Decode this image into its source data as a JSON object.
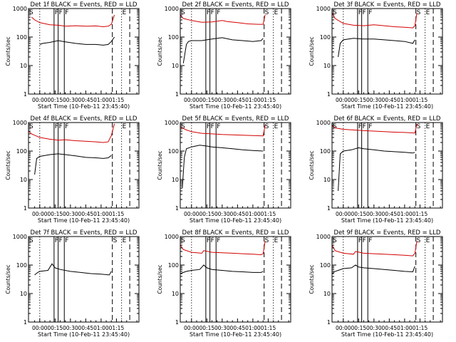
{
  "figure": {
    "ylabel": "Counts/sec",
    "xlabel": "Start Time (10-Feb-11 23:45:40)",
    "colors": {
      "events": "#000000",
      "lld": "#d40000",
      "axes": "#000000"
    }
  },
  "chart_data": [
    {
      "type": "line",
      "title": "Det 1f BLACK = Events, RED = LLD",
      "yscale": "log",
      "ylim": [
        1,
        1000
      ],
      "xticks": [
        "00:00",
        "00:15",
        "00:30",
        "00:45",
        "01:00",
        "01:15"
      ],
      "yticks": [
        "1",
        "10",
        "100",
        "1000"
      ],
      "series": [
        {
          "name": "Events",
          "color": "#000000",
          "x": [
            0,
            3,
            10,
            18,
            25,
            35,
            45,
            55,
            62,
            67,
            70,
            73
          ],
          "y": [
            55,
            60,
            65,
            75,
            68,
            60,
            55,
            55,
            52,
            55,
            70,
            100
          ]
        },
        {
          "name": "LLD",
          "color": "#d40000",
          "x": [
            -8,
            -5,
            0,
            10,
            18,
            25,
            35,
            45,
            55,
            62,
            67,
            70,
            73
          ],
          "y": [
            500,
            400,
            320,
            270,
            260,
            240,
            250,
            240,
            245,
            230,
            240,
            280,
            600
          ]
        }
      ],
      "markers": [
        {
          "x": -11,
          "label": "S",
          "style": "dash"
        },
        {
          "x": 0,
          "label": "",
          "style": "dot"
        },
        {
          "x": 14,
          "label": "F",
          "style": "solid"
        },
        {
          "x": 18,
          "label": "F",
          "style": "solid"
        },
        {
          "x": 24,
          "label": "F",
          "style": "solid"
        },
        {
          "x": 71,
          "label": "",
          "style": "dash"
        },
        {
          "x": 80,
          "label": "E",
          "style": "dot"
        },
        {
          "x": 88,
          "label": "",
          "style": "dash"
        }
      ]
    },
    {
      "type": "line",
      "title": "Det 2f BLACK = Events, RED = LLD",
      "yscale": "log",
      "ylim": [
        1,
        1000
      ],
      "xticks": [
        "00:00",
        "00:15",
        "00:30",
        "00:45",
        "01:00",
        "01:15"
      ],
      "yticks": [
        "1",
        "10",
        "100",
        "1000"
      ],
      "series": [
        {
          "name": "Events",
          "color": "#000000",
          "x": [
            -8,
            -5,
            -3,
            0,
            10,
            20,
            30,
            40,
            50,
            60,
            68,
            70
          ],
          "y": [
            12,
            55,
            70,
            75,
            75,
            85,
            95,
            80,
            75,
            70,
            75,
            90
          ]
        },
        {
          "name": "LLD",
          "color": "#d40000",
          "x": [
            -11,
            -8,
            0,
            10,
            20,
            30,
            35,
            45,
            55,
            65,
            70,
            72
          ],
          "y": [
            600,
            450,
            380,
            330,
            340,
            380,
            350,
            320,
            290,
            280,
            280,
            600
          ]
        }
      ],
      "markers": [
        {
          "x": -11,
          "label": "S",
          "style": "dash"
        },
        {
          "x": 0,
          "label": "",
          "style": "dot"
        },
        {
          "x": 14,
          "label": "F",
          "style": "solid"
        },
        {
          "x": 18,
          "label": "F",
          "style": "solid"
        },
        {
          "x": 24,
          "label": "F",
          "style": "solid"
        },
        {
          "x": 71,
          "label": "S",
          "style": "dash"
        },
        {
          "x": 80,
          "label": "E",
          "style": "dot"
        },
        {
          "x": 88,
          "label": "",
          "style": "dash"
        }
      ]
    },
    {
      "type": "line",
      "title": "Det 3f BLACK = Events, RED = LLD",
      "yscale": "log",
      "ylim": [
        1,
        1000
      ],
      "xticks": [
        "00:00",
        "00:15",
        "00:30",
        "00:45",
        "01:00",
        "01:15"
      ],
      "yticks": [
        "1",
        "10",
        "100",
        "1000"
      ],
      "series": [
        {
          "name": "Events",
          "color": "#000000",
          "x": [
            -5,
            -3,
            0,
            10,
            20,
            30,
            40,
            50,
            60,
            68,
            70
          ],
          "y": [
            20,
            60,
            80,
            90,
            85,
            85,
            80,
            75,
            70,
            60,
            80
          ]
        },
        {
          "name": "LLD",
          "color": "#d40000",
          "x": [
            -11,
            -8,
            0,
            10,
            20,
            30,
            40,
            50,
            60,
            68,
            70,
            72
          ],
          "y": [
            700,
            450,
            300,
            260,
            250,
            270,
            250,
            230,
            220,
            210,
            250,
            700
          ]
        }
      ],
      "markers": [
        {
          "x": -11,
          "label": "S",
          "style": "dash"
        },
        {
          "x": 0,
          "label": "",
          "style": "dot"
        },
        {
          "x": 14,
          "label": "F",
          "style": "solid"
        },
        {
          "x": 18,
          "label": "F",
          "style": "solid"
        },
        {
          "x": 24,
          "label": "F",
          "style": "solid"
        },
        {
          "x": 71,
          "label": "S",
          "style": "dash"
        },
        {
          "x": 80,
          "label": "E",
          "style": "dot"
        },
        {
          "x": 88,
          "label": "",
          "style": "dash"
        }
      ]
    },
    {
      "type": "line",
      "title": "Det 4f BLACK = Events, RED = LLD",
      "yscale": "log",
      "ylim": [
        1,
        1000
      ],
      "xticks": [
        "00:00",
        "00:15",
        "00:30",
        "00:45",
        "01:00",
        "01:15"
      ],
      "yticks": [
        "1",
        "10",
        "100",
        "1000"
      ],
      "series": [
        {
          "name": "Events",
          "color": "#000000",
          "x": [
            -5,
            -3,
            0,
            10,
            18,
            25,
            35,
            45,
            55,
            62,
            67,
            70
          ],
          "y": [
            15,
            55,
            65,
            75,
            80,
            75,
            68,
            60,
            58,
            55,
            58,
            70
          ]
        },
        {
          "name": "LLD",
          "color": "#d40000",
          "x": [
            -11,
            -8,
            0,
            10,
            18,
            25,
            35,
            45,
            55,
            62,
            67,
            70,
            73
          ],
          "y": [
            500,
            400,
            300,
            260,
            240,
            250,
            230,
            220,
            210,
            200,
            210,
            350,
            900
          ]
        }
      ],
      "markers": [
        {
          "x": -11,
          "label": "S",
          "style": "dash"
        },
        {
          "x": 0,
          "label": "",
          "style": "dot"
        },
        {
          "x": 14,
          "label": "F",
          "style": "solid"
        },
        {
          "x": 18,
          "label": "F",
          "style": "solid"
        },
        {
          "x": 24,
          "label": "F",
          "style": "solid"
        },
        {
          "x": 71,
          "label": "",
          "style": "dash"
        },
        {
          "x": 80,
          "label": "E",
          "style": "dot"
        },
        {
          "x": 88,
          "label": "",
          "style": "dash"
        }
      ]
    },
    {
      "type": "line",
      "title": "Det 5f BLACK = Events, RED = LLD",
      "yscale": "log",
      "ylim": [
        1,
        1000
      ],
      "xticks": [
        "00:00",
        "00:15",
        "00:30",
        "00:45",
        "01:00",
        "01:15"
      ],
      "yticks": [
        "1",
        "10",
        "100",
        "1000"
      ],
      "series": [
        {
          "name": "Events",
          "color": "#000000",
          "x": [
            -9,
            -7,
            -5,
            0,
            8,
            15,
            20,
            30,
            40,
            50,
            60,
            70
          ],
          "y": [
            5,
            60,
            120,
            140,
            160,
            150,
            140,
            130,
            120,
            110,
            105,
            100
          ]
        },
        {
          "name": "LLD",
          "color": "#d40000",
          "x": [
            -11,
            -5,
            0,
            10,
            20,
            30,
            40,
            50,
            60,
            70,
            72
          ],
          "y": [
            700,
            550,
            480,
            420,
            400,
            380,
            370,
            360,
            350,
            340,
            800
          ]
        }
      ],
      "markers": [
        {
          "x": -11,
          "label": "S",
          "style": "dash"
        },
        {
          "x": 0,
          "label": "",
          "style": "dot"
        },
        {
          "x": 14,
          "label": "F",
          "style": "solid"
        },
        {
          "x": 18,
          "label": "F",
          "style": "solid"
        },
        {
          "x": 24,
          "label": "F",
          "style": "solid"
        },
        {
          "x": 71,
          "label": "S",
          "style": "dash"
        },
        {
          "x": 80,
          "label": "E",
          "style": "dot"
        },
        {
          "x": 88,
          "label": "",
          "style": "dash"
        }
      ]
    },
    {
      "type": "line",
      "title": "Det 6f BLACK = Events, RED = LLD",
      "yscale": "log",
      "ylim": [
        1,
        1000
      ],
      "xticks": [
        "00:00",
        "00:15",
        "00:30",
        "00:45",
        "01:00",
        "01:15"
      ],
      "yticks": [
        "1",
        "10",
        "100",
        "1000"
      ],
      "series": [
        {
          "name": "Events",
          "color": "#000000",
          "x": [
            -5,
            -3,
            0,
            8,
            15,
            20,
            30,
            40,
            50,
            60,
            68,
            70
          ],
          "y": [
            4,
            80,
            100,
            110,
            130,
            120,
            110,
            100,
            95,
            90,
            85,
            90
          ]
        },
        {
          "name": "LLD",
          "color": "#d40000",
          "x": [
            -11,
            -8,
            0,
            10,
            20,
            30,
            40,
            50,
            60,
            70,
            72
          ],
          "y": [
            800,
            650,
            580,
            550,
            520,
            500,
            480,
            460,
            450,
            430,
            900
          ]
        }
      ],
      "markers": [
        {
          "x": -11,
          "label": "S",
          "style": "dash"
        },
        {
          "x": 0,
          "label": "",
          "style": "dot"
        },
        {
          "x": 14,
          "label": "F",
          "style": "solid"
        },
        {
          "x": 18,
          "label": "F",
          "style": "solid"
        },
        {
          "x": 24,
          "label": "F",
          "style": "solid"
        },
        {
          "x": 71,
          "label": "S",
          "style": "dash"
        },
        {
          "x": 80,
          "label": "E",
          "style": "dot"
        },
        {
          "x": 88,
          "label": "",
          "style": "dash"
        }
      ]
    },
    {
      "type": "line",
      "title": "Det 7f BLACK = Events, RED = LLD",
      "yscale": "log",
      "ylim": [
        1,
        1000
      ],
      "xticks": [
        "00:00",
        "00:15",
        "00:30",
        "00:45",
        "01:00",
        "01:15"
      ],
      "yticks": [
        "1",
        "10",
        "100",
        "1000"
      ],
      "series": [
        {
          "name": "Events",
          "color": "#000000",
          "x": [
            -5,
            -2,
            0,
            8,
            12,
            15,
            20,
            30,
            40,
            50,
            60,
            68,
            70
          ],
          "y": [
            45,
            55,
            60,
            65,
            110,
            80,
            70,
            60,
            55,
            50,
            48,
            45,
            60
          ]
        }
      ],
      "markers": [
        {
          "x": -11,
          "label": "S",
          "style": "dash"
        },
        {
          "x": 0,
          "label": "",
          "style": "dot"
        },
        {
          "x": 14,
          "label": "F",
          "style": "solid"
        },
        {
          "x": 18,
          "label": "F",
          "style": "solid"
        },
        {
          "x": 24,
          "label": "F",
          "style": "solid"
        },
        {
          "x": 71,
          "label": "S",
          "style": "dash"
        },
        {
          "x": 80,
          "label": "E",
          "style": "dot"
        },
        {
          "x": 88,
          "label": "",
          "style": "dash"
        }
      ]
    },
    {
      "type": "line",
      "title": "Det 8f BLACK = Events, RED = LLD",
      "yscale": "log",
      "ylim": [
        1,
        1000
      ],
      "xticks": [
        "00:00",
        "00:15",
        "00:30",
        "00:45",
        "01:00",
        "01:15"
      ],
      "yticks": [
        "1",
        "10",
        "100",
        "1000"
      ],
      "series": [
        {
          "name": "Events",
          "color": "#000000",
          "x": [
            -11,
            -8,
            -5,
            0,
            8,
            12,
            15,
            20,
            30,
            40,
            50,
            60,
            68,
            70
          ],
          "y": [
            50,
            55,
            60,
            65,
            70,
            100,
            80,
            70,
            65,
            60,
            58,
            55,
            55,
            60
          ]
        },
        {
          "name": "LLD",
          "color": "#d40000",
          "x": [
            -11,
            -8,
            0,
            10,
            12,
            20,
            30,
            40,
            50,
            60,
            68,
            70,
            72
          ],
          "y": [
            500,
            350,
            280,
            260,
            320,
            280,
            270,
            260,
            250,
            240,
            230,
            250,
            700
          ]
        }
      ],
      "markers": [
        {
          "x": -11,
          "label": "S",
          "style": "dash"
        },
        {
          "x": 0,
          "label": "",
          "style": "dot"
        },
        {
          "x": 14,
          "label": "F",
          "style": "solid"
        },
        {
          "x": 18,
          "label": "F",
          "style": "solid"
        },
        {
          "x": 24,
          "label": "F",
          "style": "solid"
        },
        {
          "x": 71,
          "label": "S",
          "style": "dash"
        },
        {
          "x": 80,
          "label": "E",
          "style": "dot"
        },
        {
          "x": 88,
          "label": "",
          "style": "dash"
        }
      ]
    },
    {
      "type": "line",
      "title": "Det 9f BLACK = Events, RED = LLD",
      "yscale": "log",
      "ylim": [
        1,
        1000
      ],
      "xticks": [
        "00:00",
        "00:15",
        "00:30",
        "00:45",
        "01:00",
        "01:15"
      ],
      "yticks": [
        "1",
        "10",
        "100",
        "1000"
      ],
      "series": [
        {
          "name": "Events",
          "color": "#000000",
          "x": [
            -11,
            -8,
            -5,
            0,
            8,
            12,
            15,
            20,
            30,
            40,
            50,
            60,
            68,
            70
          ],
          "y": [
            50,
            60,
            65,
            75,
            80,
            100,
            85,
            80,
            75,
            70,
            65,
            60,
            58,
            90
          ]
        },
        {
          "name": "LLD",
          "color": "#d40000",
          "x": [
            -11,
            -8,
            0,
            10,
            12,
            20,
            30,
            40,
            50,
            60,
            68,
            70,
            72
          ],
          "y": [
            500,
            320,
            260,
            240,
            300,
            260,
            250,
            240,
            230,
            220,
            210,
            260,
            700
          ]
        }
      ],
      "markers": [
        {
          "x": -11,
          "label": "S",
          "style": "dash"
        },
        {
          "x": 0,
          "label": "",
          "style": "dot"
        },
        {
          "x": 14,
          "label": "F",
          "style": "solid"
        },
        {
          "x": 18,
          "label": "F",
          "style": "solid"
        },
        {
          "x": 24,
          "label": "F",
          "style": "solid"
        },
        {
          "x": 71,
          "label": "S",
          "style": "dash"
        },
        {
          "x": 80,
          "label": "E",
          "style": "dot"
        },
        {
          "x": 88,
          "label": "",
          "style": "dash"
        }
      ]
    }
  ]
}
